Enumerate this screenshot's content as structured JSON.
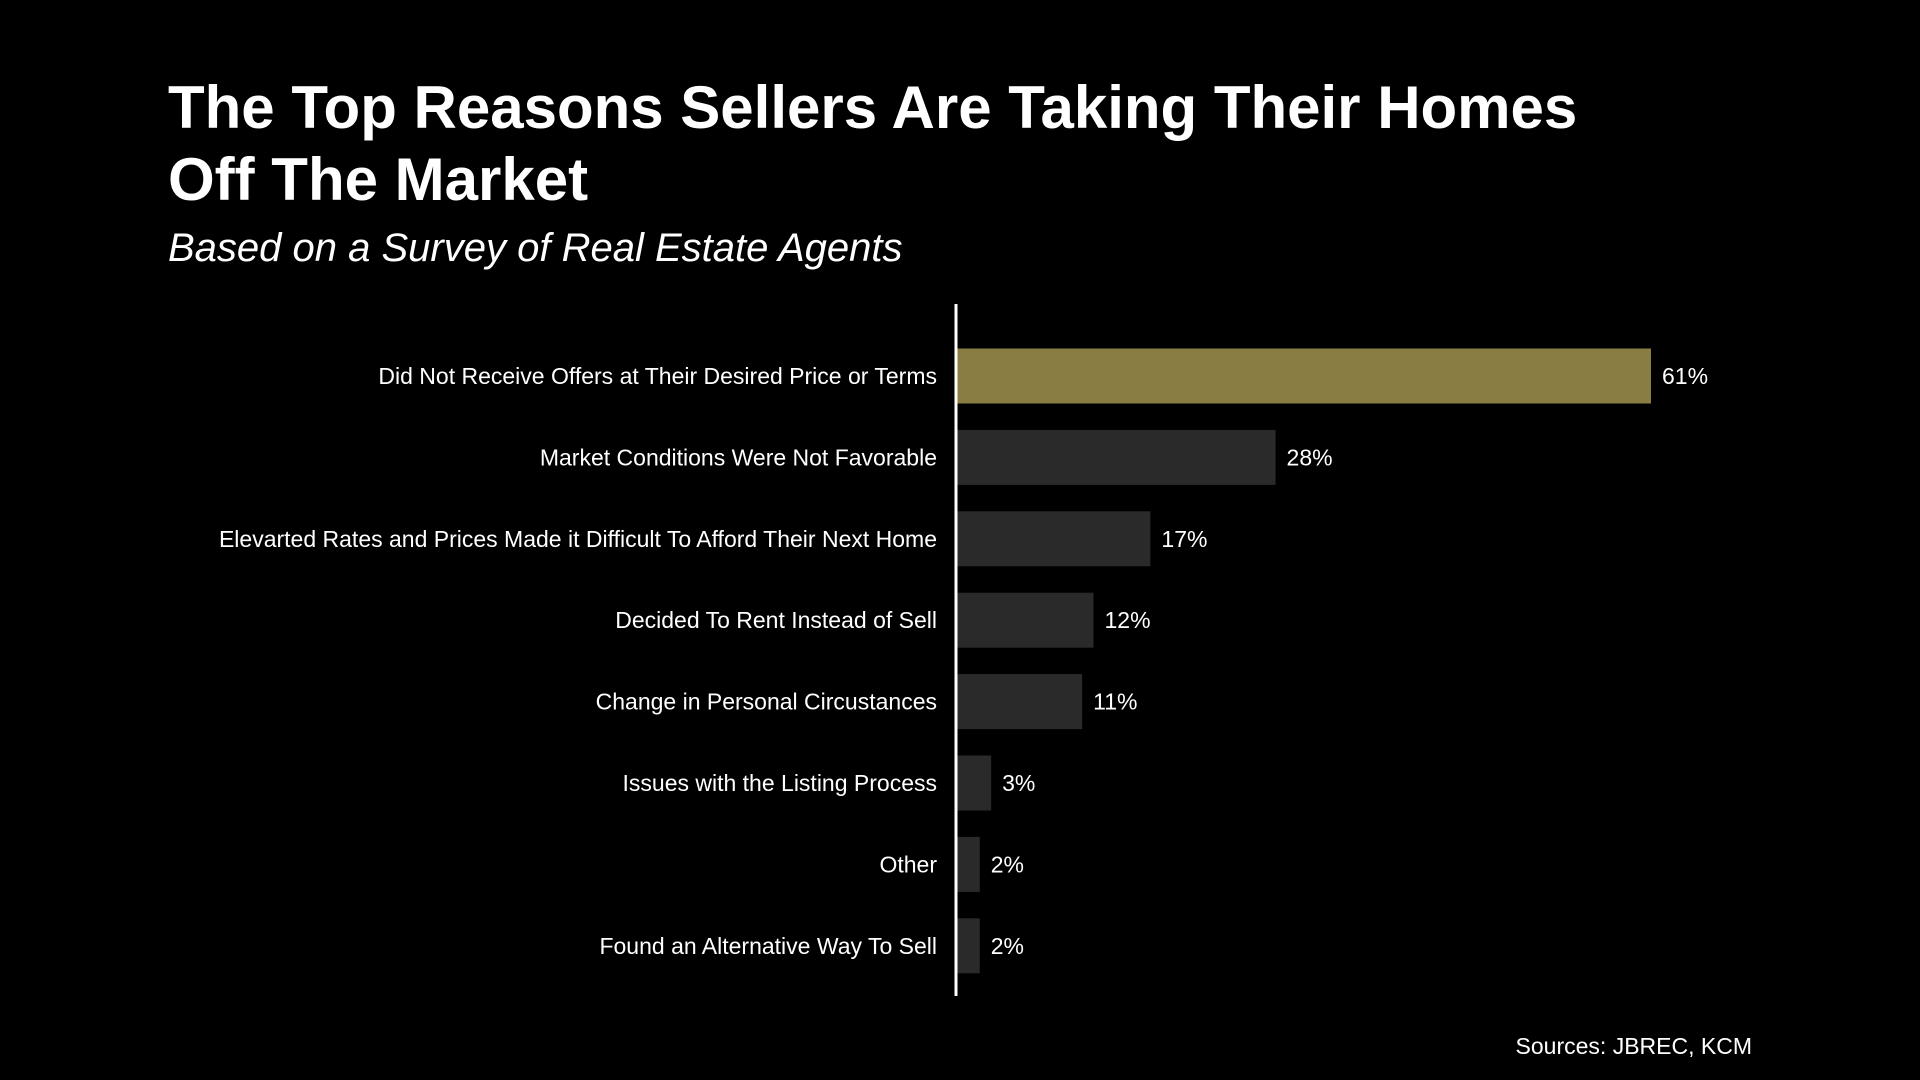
{
  "header": {
    "title": "The Top Reasons Sellers Are Taking Their Homes\nOff The Market",
    "subtitle": "Based on a Survey of Real Estate Agents"
  },
  "footer": {
    "sources": "Sources: JBREC, KCM"
  },
  "colors": {
    "background": "#000000",
    "highlight_bar": "#8a7d42",
    "bar": "#2a2a2a",
    "axis": "#ffffff",
    "text": "#ffffff"
  },
  "chart_data": {
    "type": "bar",
    "orientation": "horizontal",
    "categories": [
      "Did Not Receive Offers at Their Desired Price or Terms",
      "Market Conditions Were Not Favorable",
      "Elevarted Rates and Prices Made it Difficult To Afford Their Next Home",
      "Decided To Rent Instead of Sell",
      "Change in Personal Circustances",
      "Issues with the Listing Process",
      "Other",
      "Found an Alternative Way To Sell"
    ],
    "values": [
      61,
      28,
      17,
      12,
      11,
      3,
      2,
      2
    ],
    "value_labels": [
      "61%",
      "28%",
      "17%",
      "12%",
      "11%",
      "3%",
      "2%",
      "2%"
    ],
    "highlight_index": 0,
    "xlim": [
      0,
      61
    ],
    "grid": false,
    "legend": "none"
  }
}
